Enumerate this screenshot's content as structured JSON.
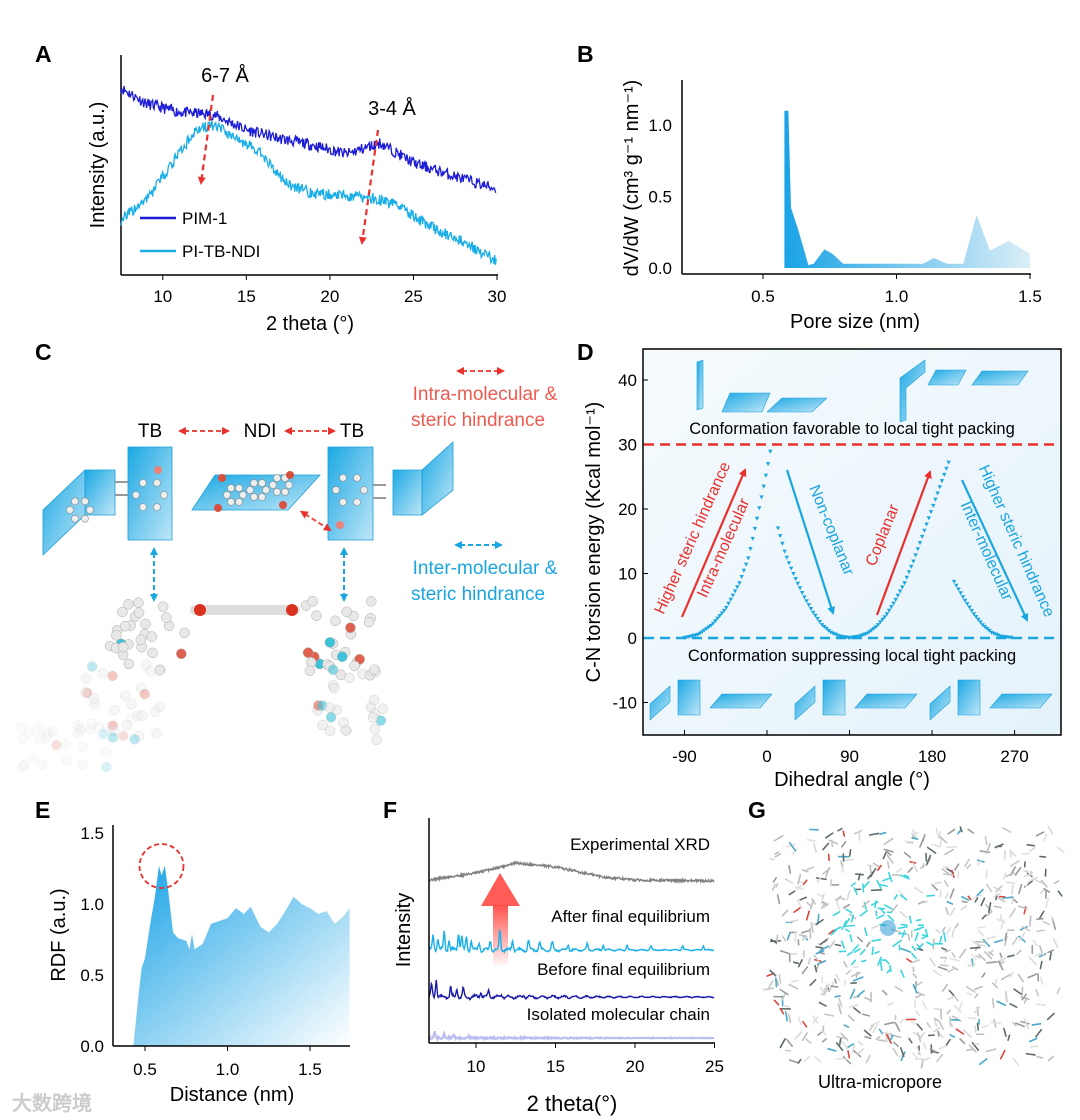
{
  "panel_labels": [
    "A",
    "B",
    "C",
    "D",
    "E",
    "F",
    "G"
  ],
  "watermark": "大数跨境",
  "schematic_c": {
    "tb_left": "TB",
    "ndi": "NDI",
    "tb_right": "TB",
    "intra_legend": [
      "Intra-molecular &",
      "steric hindrance"
    ],
    "inter_legend": [
      "Inter-molecular &",
      "steric hindrance"
    ],
    "colors": {
      "intra": "#ee4a3f",
      "inter": "#1aa6e0",
      "block": "#29b0e6"
    }
  },
  "panel_g": {
    "caption": "Ultra-micropore"
  },
  "chart_data": [
    {
      "panel": "A",
      "type": "line",
      "xlabel": "2 theta (°)",
      "ylabel": "Intensity (a.u.)",
      "xlim": [
        7.5,
        30
      ],
      "ylim": [
        0,
        1
      ],
      "xtick_labels": [
        "10",
        "15",
        "20",
        "25",
        "30"
      ],
      "series": [
        {
          "name": "PIM-1",
          "color": "#1c1cd6",
          "points": [
            [
              7.5,
              0.85
            ],
            [
              9,
              0.78
            ],
            [
              11,
              0.74
            ],
            [
              13,
              0.73
            ],
            [
              15,
              0.66
            ],
            [
              17,
              0.62
            ],
            [
              19,
              0.59
            ],
            [
              21,
              0.55
            ],
            [
              23,
              0.6
            ],
            [
              25,
              0.51
            ],
            [
              27,
              0.46
            ],
            [
              30,
              0.39
            ]
          ]
        },
        {
          "name": "PI-TB-NDI",
          "color": "#1aaee8",
          "points": [
            [
              7.5,
              0.25
            ],
            [
              9,
              0.34
            ],
            [
              10.5,
              0.5
            ],
            [
              12,
              0.66
            ],
            [
              13,
              0.68
            ],
            [
              14.5,
              0.62
            ],
            [
              15.8,
              0.56
            ],
            [
              17.3,
              0.42
            ],
            [
              19,
              0.37
            ],
            [
              21,
              0.36
            ],
            [
              22.5,
              0.35
            ],
            [
              24,
              0.32
            ],
            [
              26,
              0.22
            ],
            [
              28,
              0.15
            ],
            [
              30,
              0.06
            ]
          ]
        }
      ],
      "annotations": [
        {
          "text": "6-7 Å",
          "at_x": 12.8
        },
        {
          "text": "3-4 Å",
          "at_x": 22.5
        }
      ]
    },
    {
      "panel": "B",
      "type": "area",
      "xlabel": "Pore size (nm)",
      "ylabel": "dV/dW (cm³ g⁻¹ nm⁻¹)",
      "xlim": [
        0.2,
        1.5
      ],
      "ylim": [
        0,
        1.3
      ],
      "xtick_labels": [
        "0.5",
        "1.0",
        "1.5"
      ],
      "ytick_labels": [
        "0.0",
        "0.5",
        "1.0"
      ],
      "points": [
        [
          0.58,
          0
        ],
        [
          0.58,
          1.1
        ],
        [
          0.595,
          1.1
        ],
        [
          0.605,
          0.42
        ],
        [
          0.63,
          0.28
        ],
        [
          0.67,
          0.02
        ],
        [
          0.69,
          0.03
        ],
        [
          0.73,
          0.13
        ],
        [
          0.76,
          0.1
        ],
        [
          0.8,
          0.03
        ],
        [
          1.1,
          0.03
        ],
        [
          1.14,
          0.07
        ],
        [
          1.19,
          0.03
        ],
        [
          1.25,
          0.03
        ],
        [
          1.3,
          0.37
        ],
        [
          1.35,
          0.12
        ],
        [
          1.42,
          0.19
        ],
        [
          1.5,
          0.1
        ],
        [
          1.5,
          0
        ]
      ],
      "color_start": "#1aa3e6",
      "color_end": "#dbeef7"
    },
    {
      "panel": "D",
      "type": "scatter",
      "xlabel": "Dihedral angle (°)",
      "ylabel": "C-N torsion energy (Kcal mol⁻¹)",
      "xlim": [
        -135,
        321
      ],
      "ylim": [
        -15,
        45
      ],
      "xtick_labels": [
        "-90",
        "0",
        "90",
        "180",
        "270"
      ],
      "ytick_labels": [
        "-10",
        "0",
        "10",
        "20",
        "30",
        "40"
      ],
      "marker_color": "#1aa6e0",
      "branches": [
        [
          [
            -90,
            0
          ],
          [
            -75,
            0.5
          ],
          [
            -60,
            2
          ],
          [
            -45,
            4.5
          ],
          [
            -30,
            8.5
          ],
          [
            -20,
            12.5
          ],
          [
            -10,
            19
          ],
          [
            0,
            26
          ],
          [
            5,
            30
          ]
        ],
        [
          [
            12,
            17
          ],
          [
            20,
            13
          ],
          [
            30,
            9.5
          ],
          [
            40,
            6.5
          ],
          [
            50,
            4
          ],
          [
            60,
            2
          ],
          [
            70,
            0.8
          ],
          [
            80,
            0.2
          ],
          [
            90,
            0
          ]
        ],
        [
          [
            90,
            0
          ],
          [
            100,
            0.2
          ],
          [
            110,
            0.7
          ],
          [
            120,
            1.8
          ],
          [
            130,
            3.5
          ],
          [
            140,
            5.8
          ],
          [
            150,
            8.5
          ],
          [
            160,
            12
          ],
          [
            170,
            16
          ],
          [
            180,
            20
          ],
          [
            190,
            24
          ],
          [
            200,
            28
          ]
        ],
        [
          [
            204,
            8.7
          ],
          [
            215,
            6
          ],
          [
            225,
            3.8
          ],
          [
            235,
            2
          ],
          [
            245,
            0.8
          ],
          [
            255,
            0.2
          ],
          [
            268,
            0
          ]
        ]
      ],
      "reference_lines": [
        {
          "y": 30,
          "color": "#e8312d",
          "label": "Conformation favorable to local tight packing"
        },
        {
          "y": 0,
          "color": "#1aa6e0",
          "label": "Conformation suppressing local tight packing"
        }
      ],
      "arrow_labels": [
        {
          "lines": [
            "Higher steric hindrance",
            "Intra-molecular"
          ],
          "color": "#e8312d"
        },
        {
          "lines": [
            "Non-coplanar"
          ],
          "color": "#1aa6e0"
        },
        {
          "lines": [
            "Coplanar"
          ],
          "color": "#e8312d"
        },
        {
          "lines": [
            "Higher steric hindrance",
            "Inter-molecular"
          ],
          "color": "#1aa6e0"
        }
      ]
    },
    {
      "panel": "E",
      "type": "area",
      "xlabel": "Distance (nm)",
      "ylabel": "RDF (a.u.)",
      "xlim": [
        0.31,
        1.74
      ],
      "ylim": [
        0,
        1.55
      ],
      "xtick_labels": [
        "0.5",
        "1.0",
        "1.5"
      ],
      "ytick_labels": [
        "0.0",
        "0.5",
        "1.0",
        "1.5"
      ],
      "highlight_peak_x": 0.6,
      "points": [
        [
          0.43,
          0
        ],
        [
          0.46,
          0.35
        ],
        [
          0.48,
          0.55
        ],
        [
          0.5,
          0.62
        ],
        [
          0.53,
          0.85
        ],
        [
          0.56,
          1.05
        ],
        [
          0.585,
          1.27
        ],
        [
          0.6,
          1.2
        ],
        [
          0.62,
          1.27
        ],
        [
          0.64,
          1.1
        ],
        [
          0.67,
          0.8
        ],
        [
          0.7,
          0.76
        ],
        [
          0.75,
          0.74
        ],
        [
          0.77,
          0.68
        ],
        [
          0.785,
          0.79
        ],
        [
          0.8,
          0.68
        ],
        [
          0.85,
          0.72
        ],
        [
          0.9,
          0.86
        ],
        [
          0.95,
          0.88
        ],
        [
          1.0,
          0.9
        ],
        [
          1.05,
          0.97
        ],
        [
          1.1,
          0.93
        ],
        [
          1.14,
          0.98
        ],
        [
          1.2,
          0.84
        ],
        [
          1.25,
          0.8
        ],
        [
          1.3,
          0.86
        ],
        [
          1.35,
          0.95
        ],
        [
          1.4,
          1.05
        ],
        [
          1.45,
          1.0
        ],
        [
          1.5,
          0.97
        ],
        [
          1.55,
          0.93
        ],
        [
          1.6,
          0.95
        ],
        [
          1.65,
          0.86
        ],
        [
          1.7,
          0.91
        ],
        [
          1.74,
          0.97
        ]
      ],
      "color_start": "#1aa3e6",
      "color_end": "#ffffff"
    },
    {
      "panel": "F",
      "type": "line",
      "xlabel": "2 theta(°)",
      "ylabel": "Intensity",
      "xlim": [
        7.05,
        25
      ],
      "ylim": [
        0,
        1
      ],
      "xtick_labels": [
        "10",
        "15",
        "20",
        "25"
      ],
      "series": [
        {
          "name": "Experimental XRD",
          "color": "#7f7f7f",
          "baseline": [
            [
              7.05,
              0.815
            ],
            [
              10,
              0.85
            ],
            [
              12.5,
              0.9
            ],
            [
              15,
              0.88
            ],
            [
              18,
              0.83
            ],
            [
              20,
              0.815
            ],
            [
              25,
              0.81
            ]
          ],
          "peaks": []
        },
        {
          "name": "After final equilibrium",
          "color": "#1ab0e8",
          "baseline": [
            [
              7.05,
              0.465
            ],
            [
              25,
              0.465
            ]
          ],
          "peaks": [
            [
              7.3,
              0.07
            ],
            [
              7.6,
              0.06
            ],
            [
              8.0,
              0.09
            ],
            [
              8.3,
              0.05
            ],
            [
              8.9,
              0.09
            ],
            [
              9.1,
              0.07
            ],
            [
              9.4,
              0.06
            ],
            [
              9.7,
              0.05
            ],
            [
              10.2,
              0.04
            ],
            [
              10.9,
              0.05
            ],
            [
              11.5,
              0.1
            ],
            [
              12.3,
              0.05
            ],
            [
              13.3,
              0.05
            ],
            [
              14.0,
              0.04
            ],
            [
              14.8,
              0.04
            ],
            [
              15.8,
              0.03
            ],
            [
              17,
              0.03
            ],
            [
              18,
              0.025
            ],
            [
              19.5,
              0.025
            ],
            [
              21,
              0.02
            ],
            [
              23,
              0.02
            ],
            [
              24.3,
              0.02
            ]
          ]
        },
        {
          "name": "Before final equilibrium",
          "color": "#1a1aa8",
          "baseline": [
            [
              7.05,
              0.23
            ],
            [
              25,
              0.23
            ]
          ],
          "peaks": [
            [
              7.2,
              0.06
            ],
            [
              7.5,
              0.09
            ],
            [
              8.4,
              0.05
            ],
            [
              8.8,
              0.04
            ],
            [
              9.2,
              0.04
            ],
            [
              10.3,
              0.03
            ],
            [
              10.8,
              0.03
            ],
            [
              11.6,
              0.015
            ],
            [
              13,
              0.012
            ]
          ]
        },
        {
          "name": "Isolated molecular chain",
          "color": "#b9bdf0",
          "baseline": [
            [
              7.05,
              0.025
            ],
            [
              25,
              0.025
            ]
          ],
          "peaks": [
            [
              7.4,
              0.03
            ],
            [
              8.0,
              0.02
            ],
            [
              8.6,
              0.015
            ],
            [
              9.5,
              0.01
            ]
          ]
        }
      ]
    }
  ]
}
